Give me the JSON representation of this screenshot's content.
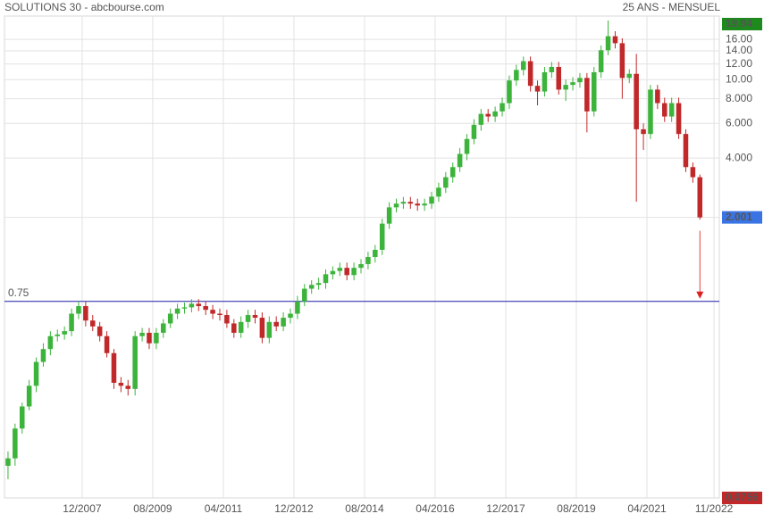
{
  "chart_data": {
    "type": "candlestick",
    "title": "SOLUTIONS 30 - abcbourse.com",
    "subtitle": "25 ANS - MENSUEL",
    "log_scale": true,
    "grid": true,
    "up_color": "#3cb43c",
    "down_color": "#c0282a",
    "x": [
      0,
      2,
      4,
      6,
      8,
      10,
      12,
      14,
      16,
      18,
      20,
      22,
      24,
      26,
      28,
      30,
      32,
      34,
      36,
      38,
      40,
      42,
      44,
      46,
      48,
      50,
      52,
      54,
      56,
      58,
      60,
      62,
      64,
      66,
      68,
      70,
      72,
      74,
      76,
      78,
      80,
      82,
      84,
      86,
      88,
      90,
      92,
      94,
      96,
      98,
      100,
      102,
      104,
      106,
      108,
      110,
      112,
      114,
      116,
      118,
      120,
      122,
      124,
      126,
      128,
      130,
      132,
      134,
      136,
      138,
      140,
      142,
      144,
      146,
      148,
      150,
      152,
      154,
      156,
      158,
      160,
      162,
      164,
      166,
      168,
      170,
      172,
      174,
      176,
      178,
      180,
      182,
      184,
      186,
      188,
      190,
      192,
      194,
      196
    ],
    "open": [
      0.11,
      0.12,
      0.17,
      0.22,
      0.28,
      0.37,
      0.43,
      0.5,
      0.51,
      0.53,
      0.65,
      0.71,
      0.6,
      0.56,
      0.5,
      0.41,
      0.29,
      0.28,
      0.27,
      0.5,
      0.52,
      0.46,
      0.52,
      0.58,
      0.65,
      0.69,
      0.7,
      0.73,
      0.71,
      0.68,
      0.65,
      0.64,
      0.58,
      0.52,
      0.59,
      0.64,
      0.62,
      0.49,
      0.59,
      0.56,
      0.62,
      0.65,
      0.75,
      0.87,
      0.91,
      0.93,
      1.03,
      1.07,
      1.11,
      1.02,
      1.11,
      1.16,
      1.26,
      1.37,
      1.86,
      2.25,
      2.35,
      2.4,
      2.35,
      2.3,
      2.35,
      2.55,
      2.83,
      3.2,
      3.6,
      4.2,
      5.0,
      5.9,
      6.7,
      6.5,
      6.9,
      7.6,
      9.9,
      11.2,
      12.4,
      9.3,
      8.7,
      10.9,
      11.6,
      8.9,
      9.4,
      9.7,
      10.2,
      6.9,
      10.9,
      14.1,
      16.6,
      15.3,
      10.2,
      10.7,
      5.6,
      5.3,
      8.9,
      7.6,
      6.5,
      7.6,
      5.3,
      3.6,
      3.2
    ],
    "high": [
      0.13,
      0.18,
      0.23,
      0.3,
      0.39,
      0.46,
      0.53,
      0.54,
      0.56,
      0.69,
      0.75,
      0.75,
      0.64,
      0.59,
      0.53,
      0.43,
      0.31,
      0.3,
      0.53,
      0.55,
      0.55,
      0.55,
      0.61,
      0.69,
      0.73,
      0.74,
      0.77,
      0.77,
      0.75,
      0.72,
      0.69,
      0.68,
      0.61,
      0.63,
      0.68,
      0.68,
      0.66,
      0.63,
      0.63,
      0.66,
      0.69,
      0.8,
      0.92,
      0.96,
      0.99,
      1.09,
      1.13,
      1.18,
      1.18,
      1.18,
      1.23,
      1.34,
      1.45,
      1.97,
      2.39,
      2.49,
      2.54,
      2.54,
      2.49,
      2.49,
      2.7,
      3.0,
      3.4,
      3.8,
      4.5,
      5.3,
      6.3,
      7.1,
      7.1,
      7.3,
      8.1,
      10.5,
      11.9,
      13.1,
      13.1,
      9.9,
      11.6,
      12.3,
      12.3,
      10.0,
      10.3,
      10.8,
      10.8,
      11.6,
      14.9,
      19.94,
      17.6,
      16.2,
      11.3,
      13.5,
      6.0,
      9.4,
      9.4,
      8.1,
      8.1,
      8.1,
      5.6,
      3.8,
      3.3
    ],
    "low": [
      0.094,
      0.11,
      0.16,
      0.21,
      0.26,
      0.35,
      0.4,
      0.47,
      0.48,
      0.5,
      0.61,
      0.56,
      0.53,
      0.47,
      0.39,
      0.27,
      0.26,
      0.25,
      0.25,
      0.47,
      0.43,
      0.43,
      0.49,
      0.55,
      0.61,
      0.65,
      0.66,
      0.67,
      0.64,
      0.61,
      0.6,
      0.55,
      0.49,
      0.49,
      0.55,
      0.58,
      0.46,
      0.46,
      0.53,
      0.53,
      0.58,
      0.61,
      0.71,
      0.82,
      0.86,
      0.87,
      0.97,
      1.01,
      0.96,
      0.96,
      1.04,
      1.09,
      1.18,
      1.29,
      1.75,
      2.12,
      2.21,
      2.21,
      2.16,
      2.16,
      2.21,
      2.4,
      2.66,
      3.0,
      3.4,
      3.9,
      4.7,
      5.5,
      6.1,
      6.1,
      6.5,
      7.1,
      9.3,
      10.5,
      8.7,
      7.4,
      8.2,
      10.2,
      8.4,
      7.8,
      8.8,
      9.1,
      5.4,
      6.5,
      10.2,
      13.3,
      14.4,
      8.0,
      9.6,
      2.4,
      4.4,
      5.0,
      7.1,
      6.1,
      6.1,
      5.0,
      3.4,
      3.0,
      1.95
    ],
    "close": [
      0.12,
      0.17,
      0.22,
      0.28,
      0.37,
      0.43,
      0.5,
      0.51,
      0.53,
      0.65,
      0.71,
      0.6,
      0.56,
      0.5,
      0.41,
      0.29,
      0.28,
      0.27,
      0.5,
      0.52,
      0.46,
      0.52,
      0.58,
      0.65,
      0.69,
      0.7,
      0.73,
      0.71,
      0.68,
      0.65,
      0.64,
      0.58,
      0.52,
      0.59,
      0.64,
      0.62,
      0.49,
      0.59,
      0.56,
      0.62,
      0.65,
      0.75,
      0.87,
      0.91,
      0.93,
      1.03,
      1.07,
      1.11,
      1.02,
      1.11,
      1.16,
      1.26,
      1.37,
      1.86,
      2.25,
      2.35,
      2.4,
      2.35,
      2.3,
      2.35,
      2.55,
      2.83,
      3.2,
      3.6,
      4.2,
      5.0,
      5.9,
      6.7,
      6.5,
      6.9,
      7.6,
      9.9,
      11.2,
      12.4,
      9.3,
      8.7,
      10.9,
      11.6,
      8.9,
      9.4,
      9.7,
      10.2,
      6.9,
      10.9,
      14.1,
      16.6,
      15.3,
      10.2,
      10.7,
      5.6,
      5.3,
      8.9,
      7.6,
      6.5,
      7.6,
      5.3,
      3.6,
      3.2,
      2.001
    ],
    "xlim": [
      -1,
      201.5
    ],
    "xticks": [
      {
        "value": 21,
        "label": "12/2007"
      },
      {
        "value": 41,
        "label": "08/2009"
      },
      {
        "value": 61,
        "label": "04/2011"
      },
      {
        "value": 81,
        "label": "12/2012"
      },
      {
        "value": 101,
        "label": "08/2014"
      },
      {
        "value": 121,
        "label": "04/2016"
      },
      {
        "value": 141,
        "label": "12/2017"
      },
      {
        "value": 161,
        "label": "08/2019"
      },
      {
        "value": 181,
        "label": "04/2021"
      },
      {
        "value": 200,
        "label": "11/2022"
      }
    ],
    "ylim": [
      0.0756,
      19.94
    ],
    "yticks": [
      {
        "value": 16,
        "label": "16.00"
      },
      {
        "value": 14,
        "label": "14.00"
      },
      {
        "value": 12,
        "label": "12.00"
      },
      {
        "value": 10,
        "label": "10.00"
      },
      {
        "value": 8,
        "label": "8.000"
      },
      {
        "value": 6,
        "label": "6.000"
      },
      {
        "value": 4,
        "label": "4.000"
      },
      2
    ],
    "level": {
      "value": 0.75,
      "label": "0.75",
      "color": "#1c1ca8"
    },
    "markers": [
      {
        "value": 19.94,
        "label": "19.94",
        "color": "#1e8a1e"
      },
      {
        "value": 2.001,
        "label": "2.001",
        "color": "#3a74e4"
      },
      {
        "value": 0.0756,
        "label": "0.0756",
        "color": "#c0282a"
      }
    ]
  }
}
